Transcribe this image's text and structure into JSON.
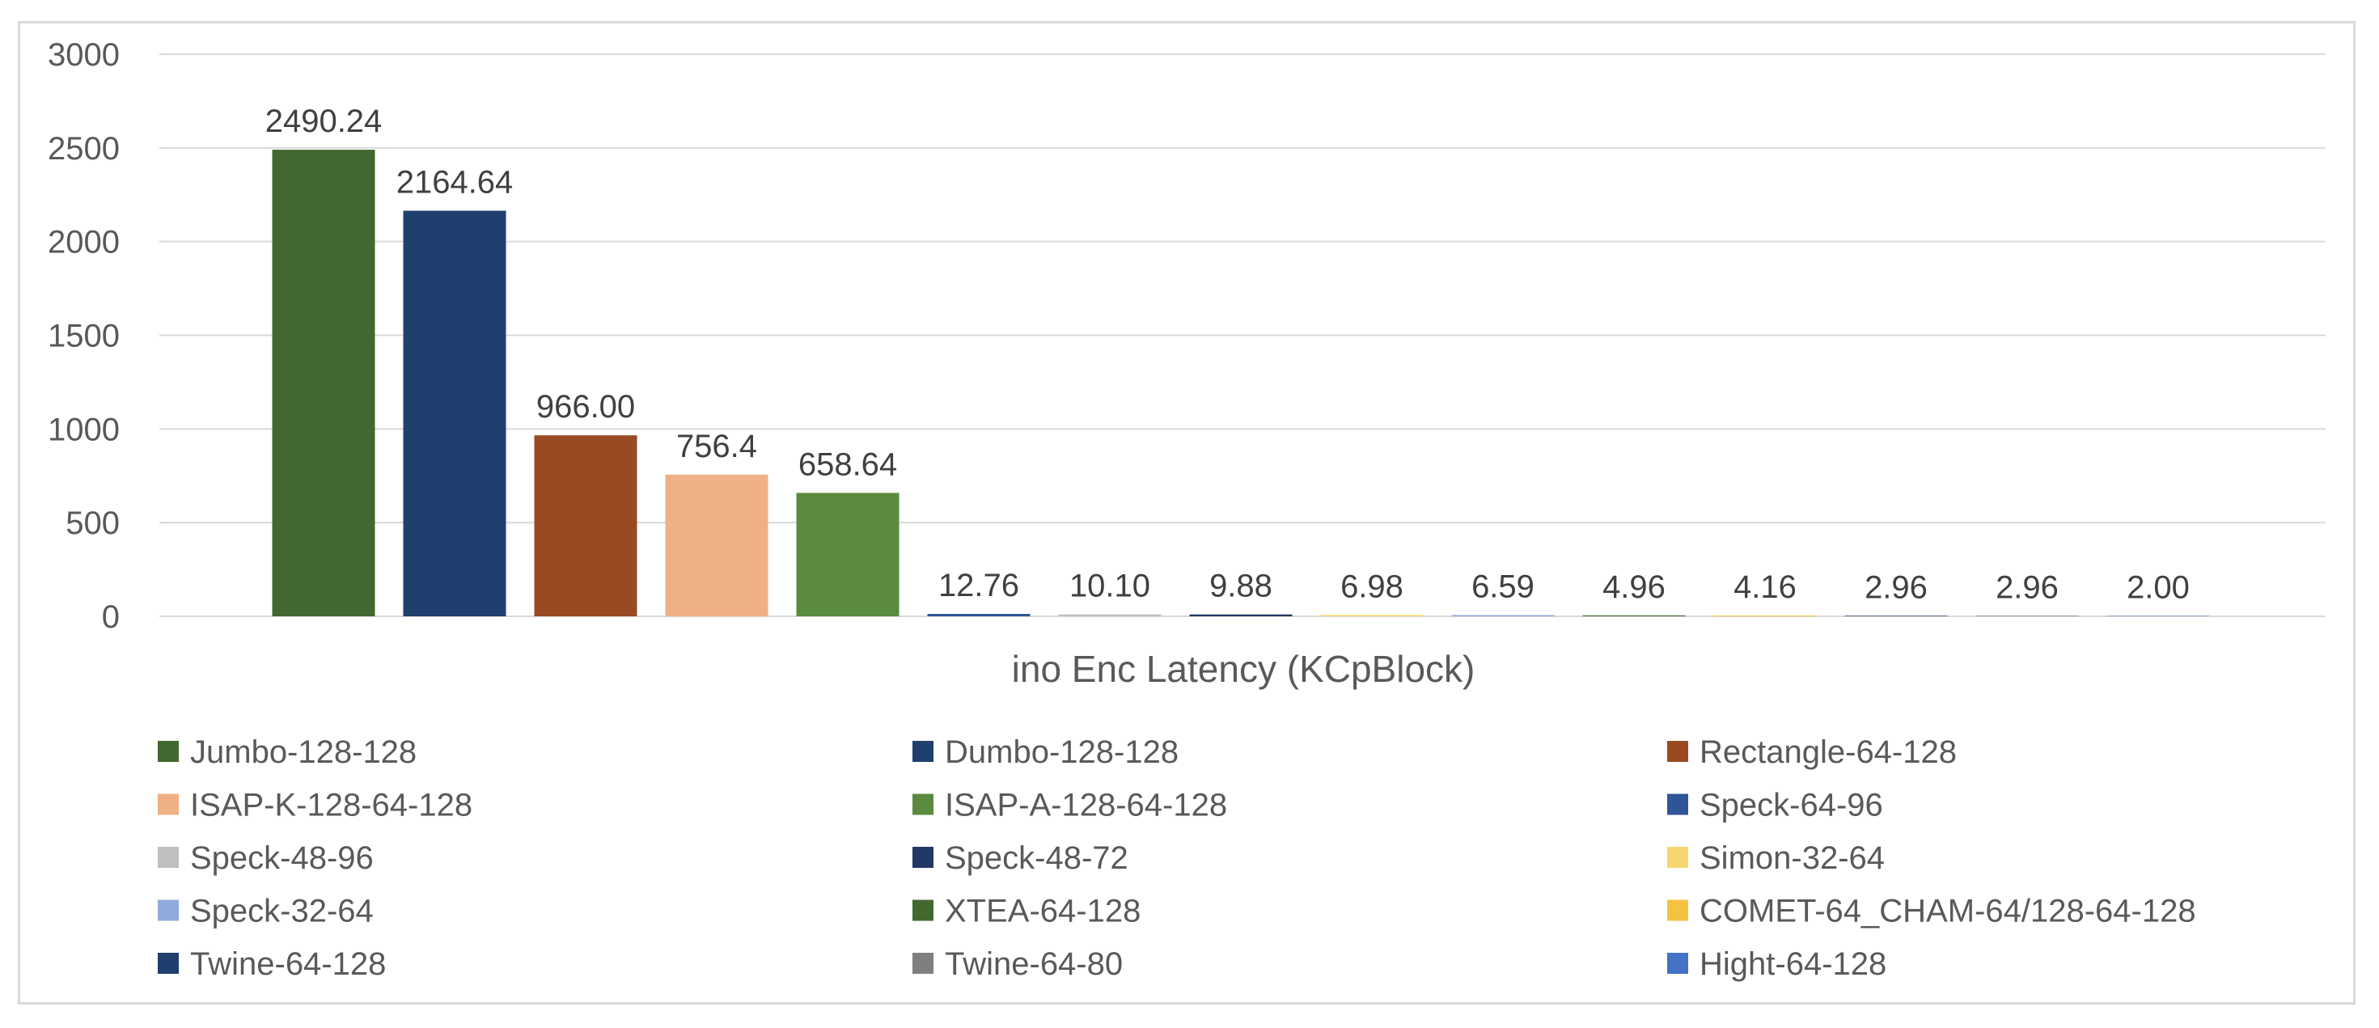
{
  "chart_data": {
    "type": "bar",
    "xlabel": "ino Enc Latency (KCpBlock)",
    "ylim": [
      0,
      3000
    ],
    "yticks": [
      0,
      500,
      1000,
      1500,
      2000,
      2500,
      3000
    ],
    "grid": true,
    "legend_position": "bottom",
    "series": [
      {
        "name": "Jumbo-128-128",
        "value": 2490.24,
        "label": "2490.24",
        "color": "#43682f"
      },
      {
        "name": "Dumbo-128-128",
        "value": 2164.64,
        "label": "2164.64",
        "color": "#1f3f6e"
      },
      {
        "name": "Rectangle-64-128",
        "value": 966.0,
        "label": "966.00",
        "color": "#9a4a22"
      },
      {
        "name": "ISAP-K-128-64-128",
        "value": 756.4,
        "label": "756.4",
        "color": "#f0b085"
      },
      {
        "name": "ISAP-A-128-64-128",
        "value": 658.64,
        "label": "658.64",
        "color": "#5a8b3f"
      },
      {
        "name": "Speck-64-96",
        "value": 12.76,
        "label": "12.76",
        "color": "#2f5597"
      },
      {
        "name": "Speck-48-96",
        "value": 10.1,
        "label": "10.10",
        "color": "#bfbfbf"
      },
      {
        "name": "Speck-48-72",
        "value": 9.88,
        "label": "9.88",
        "color": "#203864"
      },
      {
        "name": "Simon-32-64",
        "value": 6.98,
        "label": "6.98",
        "color": "#f6d76f"
      },
      {
        "name": "Speck-32-64",
        "value": 6.59,
        "label": "6.59",
        "color": "#8faadc"
      },
      {
        "name": "XTEA-64-128",
        "value": 4.96,
        "label": "4.96",
        "color": "#43682f"
      },
      {
        "name": "COMET-64_CHAM-64/128-64-128",
        "value": 4.16,
        "label": "4.16",
        "color": "#f4c342"
      },
      {
        "name": "Twine-64-128",
        "value": 2.96,
        "label": "2.96",
        "color": "#1f3f6e"
      },
      {
        "name": "Twine-64-80",
        "value": 2.96,
        "label": "2.96",
        "color": "#7f7f7f"
      },
      {
        "name": "Hight-64-128",
        "value": 2.0,
        "label": "2.00",
        "color": "#4472c4"
      }
    ]
  }
}
